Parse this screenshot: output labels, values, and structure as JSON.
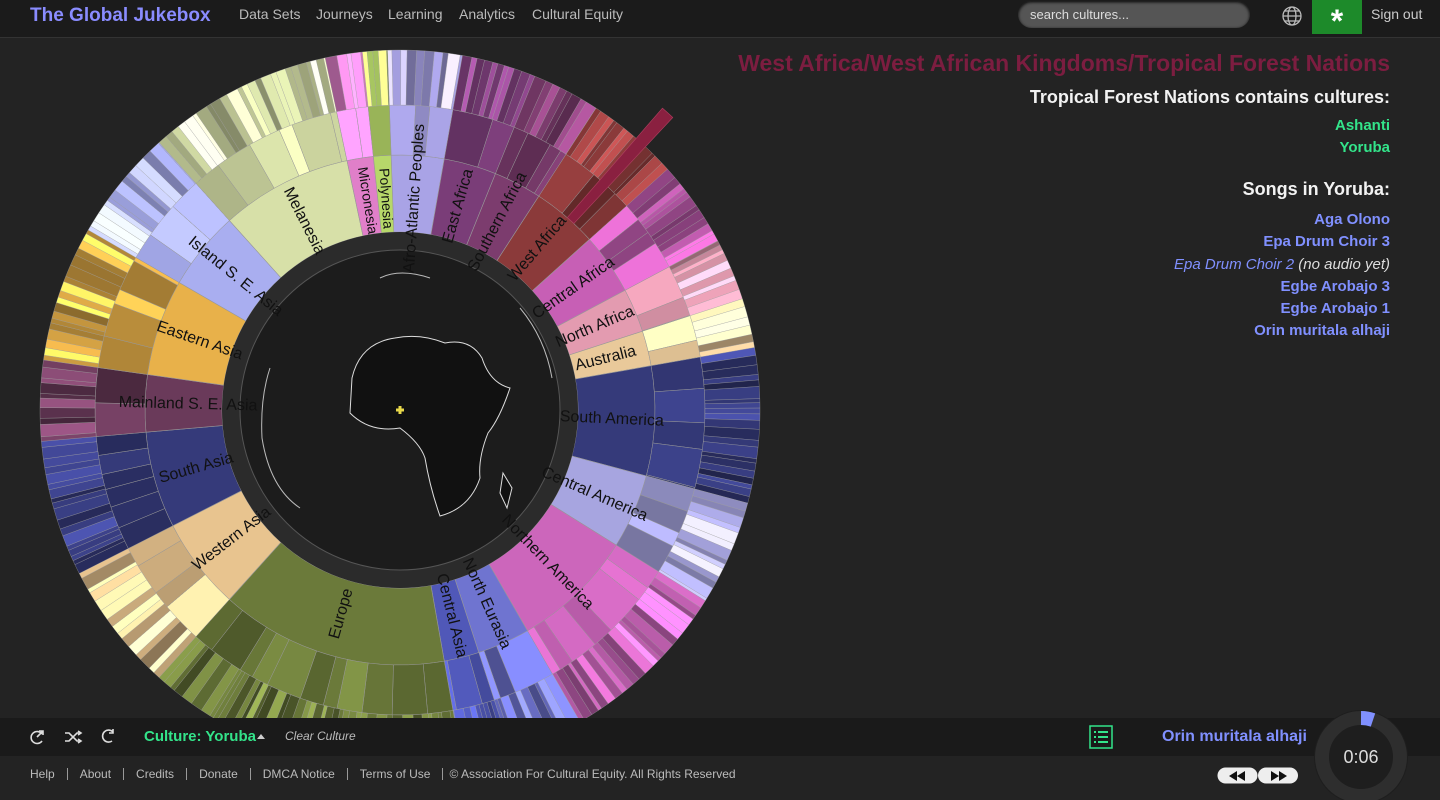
{
  "nav": {
    "brand": "The Global Jukebox",
    "links": [
      "Data Sets",
      "Journeys",
      "Learning",
      "Analytics",
      "Cultural Equity"
    ],
    "search_placeholder": "search cultures...",
    "star_button": "*",
    "sign_out": "Sign out"
  },
  "info": {
    "path": "West Africa/West African Kingdoms/Tropical Forest Nations",
    "contains_title": "Tropical Forest Nations contains cultures:",
    "cultures": [
      "Ashanti",
      "Yoruba"
    ],
    "songs_title": "Songs in Yoruba:",
    "songs": [
      {
        "title": "Aga Olono"
      },
      {
        "title": "Epa Drum Choir 3"
      },
      {
        "title": "Epa Drum Choir 2",
        "note": "(no audio yet)"
      },
      {
        "title": "Egbe Arobajo 3"
      },
      {
        "title": "Egbe Arobajo 1"
      },
      {
        "title": "Orin muritala alhaji"
      }
    ]
  },
  "sunburst": {
    "regions": [
      "Afro-Atlantic Peoples",
      "East Africa",
      "Southern Africa",
      "West Africa",
      "Central Africa",
      "North Africa",
      "Australia",
      "South America",
      "Central America",
      "Northern America",
      "North Eurasia",
      "Central Asia",
      "Europe",
      "Western Asia",
      "South Asia",
      "Mainland S. E. Asia",
      "Eastern Asia",
      "Island S. E. Asia",
      "Melanesia",
      "Micronesia",
      "Polynesia"
    ]
  },
  "player": {
    "culture": "Culture: Yoruba",
    "clear": "Clear Culture",
    "now_playing": "Orin muritala alhaji",
    "time": "0:06"
  },
  "footer": {
    "links": [
      "Help",
      "About",
      "Credits",
      "Donate",
      "DMCA Notice",
      "Terms of Use"
    ],
    "copyright": "© Association For Cultural Equity. All Rights Reserved"
  }
}
